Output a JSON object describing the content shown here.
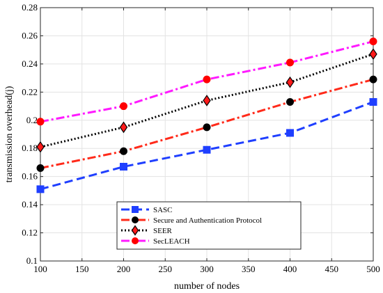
{
  "chart_data": {
    "type": "line",
    "xlabel": "number of nodes",
    "ylabel": "transmission overhead(j)",
    "xlim": [
      100,
      500
    ],
    "ylim": [
      0.1,
      0.28
    ],
    "x_ticks": [
      100,
      150,
      200,
      250,
      300,
      350,
      400,
      450,
      500
    ],
    "y_ticks": [
      0.1,
      0.12,
      0.14,
      0.16,
      0.18,
      0.2,
      0.22,
      0.24,
      0.26,
      0.28
    ],
    "grid": true,
    "legend_position": "bottom-center",
    "x": [
      100,
      200,
      300,
      400,
      500
    ],
    "series": [
      {
        "name": "SASC",
        "values": [
          0.151,
          0.167,
          0.179,
          0.191,
          0.213
        ],
        "color": "#1f3fff",
        "line_style": "dashed",
        "marker": "square"
      },
      {
        "name": "Secure and Authentication Protocol",
        "values": [
          0.166,
          0.178,
          0.195,
          0.213,
          0.229
        ],
        "color": "#ff2a1a",
        "line_style": "dash-dot",
        "marker": "circle",
        "marker_color": "#000000"
      },
      {
        "name": "SEER",
        "values": [
          0.181,
          0.195,
          0.214,
          0.227,
          0.247
        ],
        "color": "#000000",
        "line_style": "dotted",
        "marker": "diamond",
        "marker_color": "#ff1a1a"
      },
      {
        "name": "SecLEACH",
        "values": [
          0.199,
          0.21,
          0.229,
          0.241,
          0.256
        ],
        "color": "#ff1aff",
        "line_style": "dash-dot",
        "marker": "circle",
        "marker_color": "#ff0000"
      }
    ]
  }
}
